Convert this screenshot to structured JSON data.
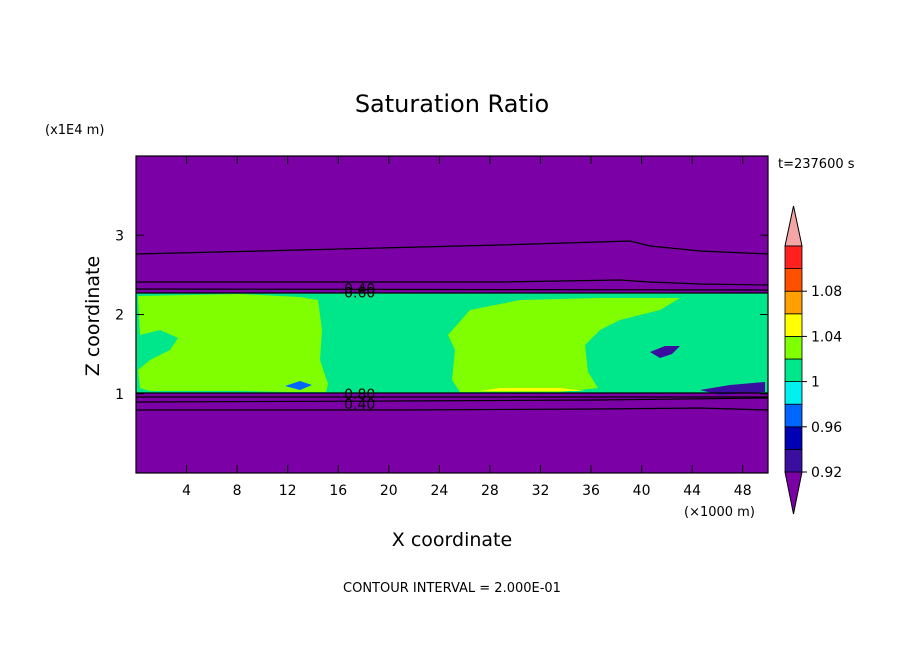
{
  "chart_data": {
    "type": "contour",
    "title": "Saturation Ratio",
    "time_label": "t=237600 s",
    "xlabel": "X coordinate",
    "ylabel": "Z coordinate",
    "x_unit": "(×1000 m)",
    "y_unit": "(x1E4 m)",
    "xlim": [
      0,
      50
    ],
    "ylim": [
      0,
      4
    ],
    "x_ticks": [
      4,
      8,
      12,
      16,
      20,
      24,
      28,
      32,
      36,
      40,
      44,
      48
    ],
    "y_ticks": [
      1,
      2,
      3
    ],
    "footer": "CONTOUR INTERVAL = 2.000E-01",
    "contour_labels": [
      {
        "text": "0.60",
        "x": 17.7,
        "z": 2.28
      },
      {
        "text": "0.40",
        "x": 17.7,
        "z": 2.33
      },
      {
        "text": "0.80",
        "x": 17.7,
        "z": 1.0
      },
      {
        "text": "0.40",
        "x": 17.7,
        "z": 0.87
      }
    ],
    "colorbar": {
      "labels": [
        "1.08",
        "1.04",
        "1",
        "0.96",
        "0.92"
      ],
      "colors": [
        "#7b00a6",
        "#3a0fa0",
        "#0000b4",
        "#0066ff",
        "#00f0f0",
        "#00e68a",
        "#80ff00",
        "#ffff00",
        "#ffa000",
        "#ff5000",
        "#ff2020",
        "#f4a6a6"
      ]
    },
    "fields": {
      "dry": "#7b00a6",
      "cloud_layer": "#00e68a",
      "supersaturated": "#80ff00",
      "peak": "#ffff00"
    }
  }
}
